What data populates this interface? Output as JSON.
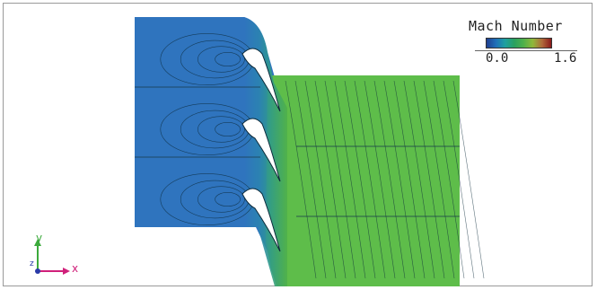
{
  "legend": {
    "title": "Mach Number",
    "min_label": "0.0",
    "max_label": "1.6",
    "colormap": [
      "#1f3f8f",
      "#1f6fb8",
      "#1fa0a0",
      "#2aa060",
      "#4fb04a",
      "#8fb83a",
      "#b06a3a",
      "#8a1a1a"
    ]
  },
  "triad": {
    "x_label": "x",
    "y_label": "y",
    "z_label": "z",
    "x_color": "#d0207a",
    "y_color": "#3caa3c",
    "z_color": "#2a3aa8"
  },
  "flow": {
    "inlet_color": "#2f74be",
    "outlet_color": "#5ebd4a",
    "contour_color": "#0c2a3a"
  }
}
